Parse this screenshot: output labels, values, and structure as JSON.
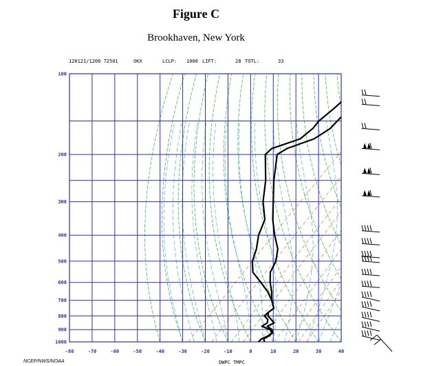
{
  "figure": {
    "title": "Figure C",
    "subtitle": "Brookhaven, New York"
  },
  "sounding_header": {
    "date_station": "120121/1200 72501",
    "station": "OKX",
    "lclp_label": "LCLP:",
    "lclp_value": "1000",
    "lift_label": "LIFT:",
    "lift_value": "28",
    "totl_label": "TOTL:",
    "totl_value": "33"
  },
  "footer": {
    "credit": "NCEP/NWS/NOAA",
    "axis_caption": "DWPC TMPC"
  },
  "colors": {
    "grid": "#2a2ad6",
    "dry_adiabat": "#22bb22",
    "moist_adiabat": "#33bbdd",
    "mixing_ratio": "#e08830",
    "profile": "#000000"
  },
  "chart_data": {
    "type": "line",
    "diagram": "skew-T log-p",
    "y_scale": "log",
    "ylim": [
      1000,
      100
    ],
    "xlim": [
      -80,
      40
    ],
    "pressure_ticks": [
      "100",
      "200",
      "300",
      "400",
      "500",
      "600",
      "700",
      "800",
      "900",
      "1000"
    ],
    "pressure_values": [
      100,
      200,
      300,
      400,
      500,
      600,
      700,
      800,
      900,
      1000
    ],
    "temperature_ticks": [
      "-80",
      "-70",
      "-60",
      "-50",
      "-40",
      "-30",
      "-20",
      "-10",
      "0",
      "10",
      "20",
      "30",
      "40"
    ],
    "temperature_values": [
      -80,
      -70,
      -60,
      -50,
      -40,
      -30,
      -20,
      -10,
      0,
      10,
      20,
      30,
      40
    ],
    "series": [
      {
        "name": "TMPC",
        "points": [
          [
            1000,
            6.1
          ],
          [
            975,
            4.5
          ],
          [
            950,
            5.5
          ],
          [
            925,
            5.8
          ],
          [
            900,
            4.0
          ],
          [
            875,
            0.5
          ],
          [
            850,
            2.0
          ],
          [
            825,
            -0.8
          ],
          [
            800,
            -3.8
          ],
          [
            775,
            -5.2
          ],
          [
            750,
            -4.5
          ],
          [
            700,
            -9.0
          ],
          [
            650,
            -12.8
          ],
          [
            600,
            -17.6
          ],
          [
            550,
            -22.0
          ],
          [
            500,
            -24.4
          ],
          [
            450,
            -29.0
          ],
          [
            400,
            -36.4
          ],
          [
            350,
            -44.1
          ],
          [
            300,
            -51.8
          ],
          [
            250,
            -60.9
          ],
          [
            200,
            -70.9
          ],
          [
            190,
            -69.1
          ],
          [
            175,
            -61.5
          ],
          [
            160,
            -58.9
          ],
          [
            150,
            -59.1
          ],
          [
            135,
            -59.2
          ],
          [
            125,
            -58.5
          ],
          [
            115,
            -58.4
          ],
          [
            100,
            -58.7
          ]
        ]
      },
      {
        "name": "DWPC",
        "points": [
          [
            1000,
            3.4
          ],
          [
            975,
            3.5
          ],
          [
            950,
            5.1
          ],
          [
            925,
            5.3
          ],
          [
            900,
            3.2
          ],
          [
            875,
            -1.9
          ],
          [
            850,
            -1.0
          ],
          [
            825,
            -2.3
          ],
          [
            800,
            -5.4
          ],
          [
            775,
            -5.2
          ],
          [
            750,
            -4.5
          ],
          [
            700,
            -9.0
          ],
          [
            650,
            -14.6
          ],
          [
            600,
            -21.7
          ],
          [
            550,
            -29.7
          ],
          [
            500,
            -34.8
          ],
          [
            450,
            -38.4
          ],
          [
            400,
            -43.5
          ],
          [
            350,
            -47.6
          ],
          [
            300,
            -56.3
          ],
          [
            250,
            -64.5
          ],
          [
            200,
            -76.1
          ],
          [
            190,
            -75.9
          ],
          [
            175,
            -67.6
          ],
          [
            160,
            -66.6
          ],
          [
            150,
            -67.2
          ],
          [
            135,
            -66.1
          ],
          [
            125,
            -65.6
          ],
          [
            115,
            -64.7
          ],
          [
            100,
            -64.2
          ]
        ]
      }
    ],
    "wind_barbs": [
      {
        "pressure": 120
      },
      {
        "pressure": 130
      },
      {
        "pressure": 160
      },
      {
        "pressure": 190
      },
      {
        "pressure": 235
      },
      {
        "pressure": 285
      },
      {
        "pressure": 385
      },
      {
        "pressure": 430
      },
      {
        "pressure": 480
      },
      {
        "pressure": 500
      },
      {
        "pressure": 560
      },
      {
        "pressure": 620
      },
      {
        "pressure": 680
      },
      {
        "pressure": 740
      },
      {
        "pressure": 810
      },
      {
        "pressure": 880
      },
      {
        "pressure": 950
      },
      {
        "pressure": 1000
      }
    ],
    "grid": true
  }
}
